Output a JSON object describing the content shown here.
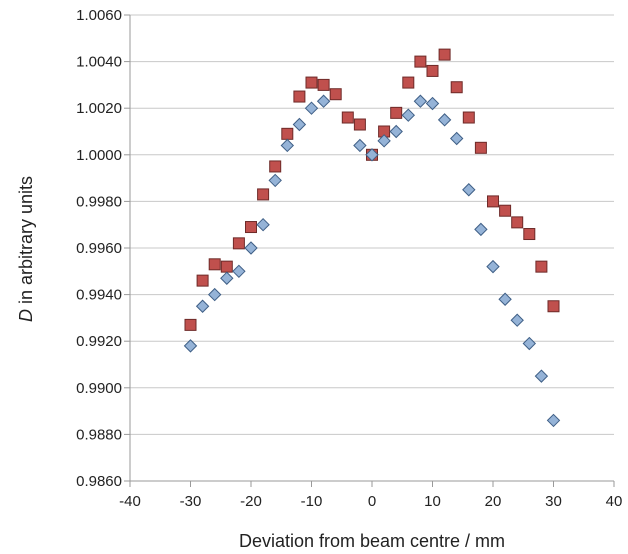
{
  "chart_data": {
    "type": "scatter",
    "xlabel": "Deviation from beam centre / mm",
    "ylabel_italic": "D",
    "ylabel_rest": " in arbitrary units",
    "xlim": [
      -40,
      40
    ],
    "ylim": [
      0.986,
      1.006
    ],
    "xticks": [
      -40,
      -30,
      -20,
      -10,
      0,
      10,
      20,
      30,
      40
    ],
    "xtick_labels": [
      "-40",
      "-30",
      "-20",
      "-10",
      "0",
      "10",
      "20",
      "30",
      "40"
    ],
    "yticks": [
      0.986,
      0.988,
      0.99,
      0.992,
      0.994,
      0.996,
      0.998,
      1.0,
      1.002,
      1.004,
      1.006
    ],
    "ytick_labels": [
      "0.9860",
      "0.9880",
      "0.9900",
      "0.9920",
      "0.9940",
      "0.9960",
      "0.9980",
      "1.0000",
      "1.0020",
      "1.0040",
      "1.0060"
    ],
    "grid": "horizontal",
    "legend": "none",
    "series": [
      {
        "marker": "square",
        "color": "#c0504d",
        "edge": "#6e2a28",
        "points": [
          [
            -30,
            0.9927
          ],
          [
            -28,
            0.9946
          ],
          [
            -26,
            0.9953
          ],
          [
            -24,
            0.9952
          ],
          [
            -22,
            0.9962
          ],
          [
            -20,
            0.9969
          ],
          [
            -18,
            0.9983
          ],
          [
            -16,
            0.9995
          ],
          [
            -14,
            1.0009
          ],
          [
            -12,
            1.0025
          ],
          [
            -10,
            1.0031
          ],
          [
            -8,
            1.003
          ],
          [
            -6,
            1.0026
          ],
          [
            -4,
            1.0016
          ],
          [
            -2,
            1.0013
          ],
          [
            0,
            1.0
          ],
          [
            2,
            1.001
          ],
          [
            4,
            1.0018
          ],
          [
            6,
            1.0031
          ],
          [
            8,
            1.004
          ],
          [
            10,
            1.0036
          ],
          [
            12,
            1.0043
          ],
          [
            14,
            1.0029
          ],
          [
            16,
            1.0016
          ],
          [
            18,
            1.0003
          ],
          [
            20,
            0.998
          ],
          [
            22,
            0.9976
          ],
          [
            24,
            0.9971
          ],
          [
            26,
            0.9966
          ],
          [
            28,
            0.9952
          ],
          [
            30,
            0.9935
          ]
        ]
      },
      {
        "marker": "diamond",
        "color": "#95b3d7",
        "edge": "#3f5f86",
        "points": [
          [
            -30,
            0.9918
          ],
          [
            -28,
            0.9935
          ],
          [
            -26,
            0.994
          ],
          [
            -24,
            0.9947
          ],
          [
            -22,
            0.995
          ],
          [
            -20,
            0.996
          ],
          [
            -18,
            0.997
          ],
          [
            -16,
            0.9989
          ],
          [
            -14,
            1.0004
          ],
          [
            -12,
            1.0013
          ],
          [
            -10,
            1.002
          ],
          [
            -8,
            1.0023
          ],
          [
            -2,
            1.0004
          ],
          [
            0,
            1.0
          ],
          [
            2,
            1.0006
          ],
          [
            4,
            1.001
          ],
          [
            6,
            1.0017
          ],
          [
            8,
            1.0023
          ],
          [
            10,
            1.0022
          ],
          [
            12,
            1.0015
          ],
          [
            14,
            1.0007
          ],
          [
            16,
            0.9985
          ],
          [
            18,
            0.9968
          ],
          [
            20,
            0.9952
          ],
          [
            22,
            0.9938
          ],
          [
            24,
            0.9929
          ],
          [
            26,
            0.9919
          ],
          [
            28,
            0.9905
          ],
          [
            30,
            0.9886
          ]
        ]
      }
    ]
  }
}
